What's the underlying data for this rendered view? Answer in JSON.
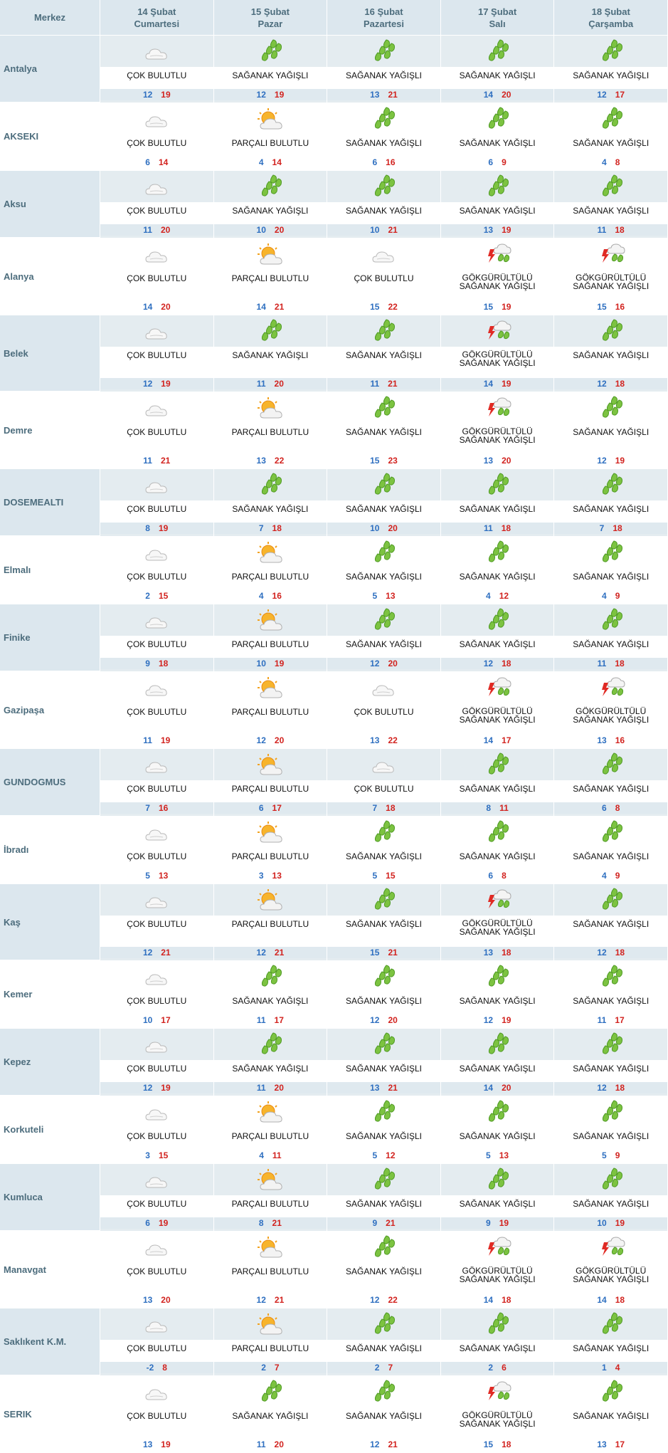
{
  "header": {
    "merkez": "Merkez",
    "days": [
      {
        "date": "14 Şubat",
        "weekday": "Cumartesi"
      },
      {
        "date": "15 Şubat",
        "weekday": "Pazar"
      },
      {
        "date": "16 Şubat",
        "weekday": "Pazartesi"
      },
      {
        "date": "17 Şubat",
        "weekday": "Salı"
      },
      {
        "date": "18 Şubat",
        "weekday": "Çarşamba"
      }
    ]
  },
  "icons": {
    "cloudy": "cloud-icon",
    "partly": "sun-cloud-icon",
    "showers": "rain-drops-icon",
    "storm": "thunderstorm-icon"
  },
  "colors": {
    "min": "#2e6fc0",
    "max": "#d2231f",
    "header_bg": "#dce7ee"
  },
  "rows": [
    {
      "city": "Antalya",
      "days": [
        {
          "cond": "ÇOK BULUTLU",
          "lo": "12",
          "hi": "19"
        },
        {
          "cond": "SAĞANAK YAĞIŞLI",
          "lo": "12",
          "hi": "19"
        },
        {
          "cond": "SAĞANAK YAĞIŞLI",
          "lo": "13",
          "hi": "21"
        },
        {
          "cond": "SAĞANAK YAĞIŞLI",
          "lo": "14",
          "hi": "20"
        },
        {
          "cond": "SAĞANAK YAĞIŞLI",
          "lo": "12",
          "hi": "17"
        }
      ]
    },
    {
      "city": "AKSEKI",
      "days": [
        {
          "cond": "ÇOK BULUTLU",
          "lo": "6",
          "hi": "14"
        },
        {
          "cond": "PARÇALI BULUTLU",
          "lo": "4",
          "hi": "14"
        },
        {
          "cond": "SAĞANAK YAĞIŞLI",
          "lo": "6",
          "hi": "16"
        },
        {
          "cond": "SAĞANAK YAĞIŞLI",
          "lo": "6",
          "hi": "9"
        },
        {
          "cond": "SAĞANAK YAĞIŞLI",
          "lo": "4",
          "hi": "8"
        }
      ]
    },
    {
      "city": "Aksu",
      "days": [
        {
          "cond": "ÇOK BULUTLU",
          "lo": "11",
          "hi": "20"
        },
        {
          "cond": "SAĞANAK YAĞIŞLI",
          "lo": "10",
          "hi": "20"
        },
        {
          "cond": "SAĞANAK YAĞIŞLI",
          "lo": "10",
          "hi": "21"
        },
        {
          "cond": "SAĞANAK YAĞIŞLI",
          "lo": "13",
          "hi": "19"
        },
        {
          "cond": "SAĞANAK YAĞIŞLI",
          "lo": "11",
          "hi": "18"
        }
      ]
    },
    {
      "city": "Alanya",
      "days": [
        {
          "cond": "ÇOK BULUTLU",
          "lo": "14",
          "hi": "20"
        },
        {
          "cond": "PARÇALI BULUTLU",
          "lo": "14",
          "hi": "21"
        },
        {
          "cond": "ÇOK BULUTLU",
          "lo": "15",
          "hi": "22"
        },
        {
          "cond": "GÖKGÜRÜLTÜLÜ SAĞANAK YAĞIŞLI",
          "lo": "15",
          "hi": "19"
        },
        {
          "cond": "GÖKGÜRÜLTÜLÜ SAĞANAK YAĞIŞLI",
          "lo": "15",
          "hi": "16"
        }
      ]
    },
    {
      "city": "Belek",
      "days": [
        {
          "cond": "ÇOK BULUTLU",
          "lo": "12",
          "hi": "19"
        },
        {
          "cond": "SAĞANAK YAĞIŞLI",
          "lo": "11",
          "hi": "20"
        },
        {
          "cond": "SAĞANAK YAĞIŞLI",
          "lo": "11",
          "hi": "21"
        },
        {
          "cond": "GÖKGÜRÜLTÜLÜ SAĞANAK YAĞIŞLI",
          "lo": "14",
          "hi": "19"
        },
        {
          "cond": "SAĞANAK YAĞIŞLI",
          "lo": "12",
          "hi": "18"
        }
      ]
    },
    {
      "city": "Demre",
      "days": [
        {
          "cond": "ÇOK BULUTLU",
          "lo": "11",
          "hi": "21"
        },
        {
          "cond": "PARÇALI BULUTLU",
          "lo": "13",
          "hi": "22"
        },
        {
          "cond": "SAĞANAK YAĞIŞLI",
          "lo": "15",
          "hi": "23"
        },
        {
          "cond": "GÖKGÜRÜLTÜLÜ SAĞANAK YAĞIŞLI",
          "lo": "13",
          "hi": "20"
        },
        {
          "cond": "SAĞANAK YAĞIŞLI",
          "lo": "12",
          "hi": "19"
        }
      ]
    },
    {
      "city": "DOSEMEALTI",
      "days": [
        {
          "cond": "ÇOK BULUTLU",
          "lo": "8",
          "hi": "19"
        },
        {
          "cond": "SAĞANAK YAĞIŞLI",
          "lo": "7",
          "hi": "18"
        },
        {
          "cond": "SAĞANAK YAĞIŞLI",
          "lo": "10",
          "hi": "20"
        },
        {
          "cond": "SAĞANAK YAĞIŞLI",
          "lo": "11",
          "hi": "18"
        },
        {
          "cond": "SAĞANAK YAĞIŞLI",
          "lo": "7",
          "hi": "18"
        }
      ]
    },
    {
      "city": "Elmalı",
      "days": [
        {
          "cond": "ÇOK BULUTLU",
          "lo": "2",
          "hi": "15"
        },
        {
          "cond": "PARÇALI BULUTLU",
          "lo": "4",
          "hi": "16"
        },
        {
          "cond": "SAĞANAK YAĞIŞLI",
          "lo": "5",
          "hi": "13"
        },
        {
          "cond": "SAĞANAK YAĞIŞLI",
          "lo": "4",
          "hi": "12"
        },
        {
          "cond": "SAĞANAK YAĞIŞLI",
          "lo": "4",
          "hi": "9"
        }
      ]
    },
    {
      "city": "Finike",
      "days": [
        {
          "cond": "ÇOK BULUTLU",
          "lo": "9",
          "hi": "18"
        },
        {
          "cond": "PARÇALI BULUTLU",
          "lo": "10",
          "hi": "19"
        },
        {
          "cond": "SAĞANAK YAĞIŞLI",
          "lo": "12",
          "hi": "20"
        },
        {
          "cond": "SAĞANAK YAĞIŞLI",
          "lo": "12",
          "hi": "18"
        },
        {
          "cond": "SAĞANAK YAĞIŞLI",
          "lo": "11",
          "hi": "18"
        }
      ]
    },
    {
      "city": "Gazipaşa",
      "days": [
        {
          "cond": "ÇOK BULUTLU",
          "lo": "11",
          "hi": "19"
        },
        {
          "cond": "PARÇALI BULUTLU",
          "lo": "12",
          "hi": "20"
        },
        {
          "cond": "ÇOK BULUTLU",
          "lo": "13",
          "hi": "22"
        },
        {
          "cond": "GÖKGÜRÜLTÜLÜ SAĞANAK YAĞIŞLI",
          "lo": "14",
          "hi": "17"
        },
        {
          "cond": "GÖKGÜRÜLTÜLÜ SAĞANAK YAĞIŞLI",
          "lo": "13",
          "hi": "16"
        }
      ]
    },
    {
      "city": "GUNDOGMUS",
      "days": [
        {
          "cond": "ÇOK BULUTLU",
          "lo": "7",
          "hi": "16"
        },
        {
          "cond": "PARÇALI BULUTLU",
          "lo": "6",
          "hi": "17"
        },
        {
          "cond": "ÇOK BULUTLU",
          "lo": "7",
          "hi": "18"
        },
        {
          "cond": "SAĞANAK YAĞIŞLI",
          "lo": "8",
          "hi": "11"
        },
        {
          "cond": "SAĞANAK YAĞIŞLI",
          "lo": "6",
          "hi": "8"
        }
      ]
    },
    {
      "city": "İbradı",
      "days": [
        {
          "cond": "ÇOK BULUTLU",
          "lo": "5",
          "hi": "13"
        },
        {
          "cond": "PARÇALI BULUTLU",
          "lo": "3",
          "hi": "13"
        },
        {
          "cond": "SAĞANAK YAĞIŞLI",
          "lo": "5",
          "hi": "15"
        },
        {
          "cond": "SAĞANAK YAĞIŞLI",
          "lo": "6",
          "hi": "8"
        },
        {
          "cond": "SAĞANAK YAĞIŞLI",
          "lo": "4",
          "hi": "9"
        }
      ]
    },
    {
      "city": "Kaş",
      "days": [
        {
          "cond": "ÇOK BULUTLU",
          "lo": "12",
          "hi": "21"
        },
        {
          "cond": "PARÇALI BULUTLU",
          "lo": "12",
          "hi": "21"
        },
        {
          "cond": "SAĞANAK YAĞIŞLI",
          "lo": "15",
          "hi": "21"
        },
        {
          "cond": "GÖKGÜRÜLTÜLÜ SAĞANAK YAĞIŞLI",
          "lo": "13",
          "hi": "18"
        },
        {
          "cond": "SAĞANAK YAĞIŞLI",
          "lo": "12",
          "hi": "18"
        }
      ]
    },
    {
      "city": "Kemer",
      "days": [
        {
          "cond": "ÇOK BULUTLU",
          "lo": "10",
          "hi": "17"
        },
        {
          "cond": "SAĞANAK YAĞIŞLI",
          "lo": "11",
          "hi": "17"
        },
        {
          "cond": "SAĞANAK YAĞIŞLI",
          "lo": "12",
          "hi": "20"
        },
        {
          "cond": "SAĞANAK YAĞIŞLI",
          "lo": "12",
          "hi": "19"
        },
        {
          "cond": "SAĞANAK YAĞIŞLI",
          "lo": "11",
          "hi": "17"
        }
      ]
    },
    {
      "city": "Kepez",
      "days": [
        {
          "cond": "ÇOK BULUTLU",
          "lo": "12",
          "hi": "19"
        },
        {
          "cond": "SAĞANAK YAĞIŞLI",
          "lo": "11",
          "hi": "20"
        },
        {
          "cond": "SAĞANAK YAĞIŞLI",
          "lo": "13",
          "hi": "21"
        },
        {
          "cond": "SAĞANAK YAĞIŞLI",
          "lo": "14",
          "hi": "20"
        },
        {
          "cond": "SAĞANAK YAĞIŞLI",
          "lo": "12",
          "hi": "18"
        }
      ]
    },
    {
      "city": "Korkuteli",
      "days": [
        {
          "cond": "ÇOK BULUTLU",
          "lo": "3",
          "hi": "15"
        },
        {
          "cond": "PARÇALI BULUTLU",
          "lo": "4",
          "hi": "11"
        },
        {
          "cond": "SAĞANAK YAĞIŞLI",
          "lo": "5",
          "hi": "12"
        },
        {
          "cond": "SAĞANAK YAĞIŞLI",
          "lo": "5",
          "hi": "13"
        },
        {
          "cond": "SAĞANAK YAĞIŞLI",
          "lo": "5",
          "hi": "9"
        }
      ]
    },
    {
      "city": "Kumluca",
      "days": [
        {
          "cond": "ÇOK BULUTLU",
          "lo": "6",
          "hi": "19"
        },
        {
          "cond": "PARÇALI BULUTLU",
          "lo": "8",
          "hi": "21"
        },
        {
          "cond": "SAĞANAK YAĞIŞLI",
          "lo": "9",
          "hi": "21"
        },
        {
          "cond": "SAĞANAK YAĞIŞLI",
          "lo": "9",
          "hi": "19"
        },
        {
          "cond": "SAĞANAK YAĞIŞLI",
          "lo": "10",
          "hi": "19"
        }
      ]
    },
    {
      "city": "Manavgat",
      "days": [
        {
          "cond": "ÇOK BULUTLU",
          "lo": "13",
          "hi": "20"
        },
        {
          "cond": "PARÇALI BULUTLU",
          "lo": "12",
          "hi": "21"
        },
        {
          "cond": "SAĞANAK YAĞIŞLI",
          "lo": "12",
          "hi": "22"
        },
        {
          "cond": "GÖKGÜRÜLTÜLÜ SAĞANAK YAĞIŞLI",
          "lo": "14",
          "hi": "18"
        },
        {
          "cond": "GÖKGÜRÜLTÜLÜ SAĞANAK YAĞIŞLI",
          "lo": "14",
          "hi": "18"
        }
      ]
    },
    {
      "city": "Saklıkent K.M.",
      "days": [
        {
          "cond": "ÇOK BULUTLU",
          "lo": "-2",
          "hi": "8"
        },
        {
          "cond": "PARÇALI BULUTLU",
          "lo": "2",
          "hi": "7"
        },
        {
          "cond": "SAĞANAK YAĞIŞLI",
          "lo": "2",
          "hi": "7"
        },
        {
          "cond": "SAĞANAK YAĞIŞLI",
          "lo": "2",
          "hi": "6"
        },
        {
          "cond": "SAĞANAK YAĞIŞLI",
          "lo": "1",
          "hi": "4"
        }
      ]
    },
    {
      "city": "SERIK",
      "days": [
        {
          "cond": "ÇOK BULUTLU",
          "lo": "13",
          "hi": "19"
        },
        {
          "cond": "SAĞANAK YAĞIŞLI",
          "lo": "11",
          "hi": "20"
        },
        {
          "cond": "SAĞANAK YAĞIŞLI",
          "lo": "12",
          "hi": "21"
        },
        {
          "cond": "GÖKGÜRÜLTÜLÜ SAĞANAK YAĞIŞLI",
          "lo": "15",
          "hi": "18"
        },
        {
          "cond": "SAĞANAK YAĞIŞLI",
          "lo": "13",
          "hi": "17"
        }
      ]
    }
  ]
}
